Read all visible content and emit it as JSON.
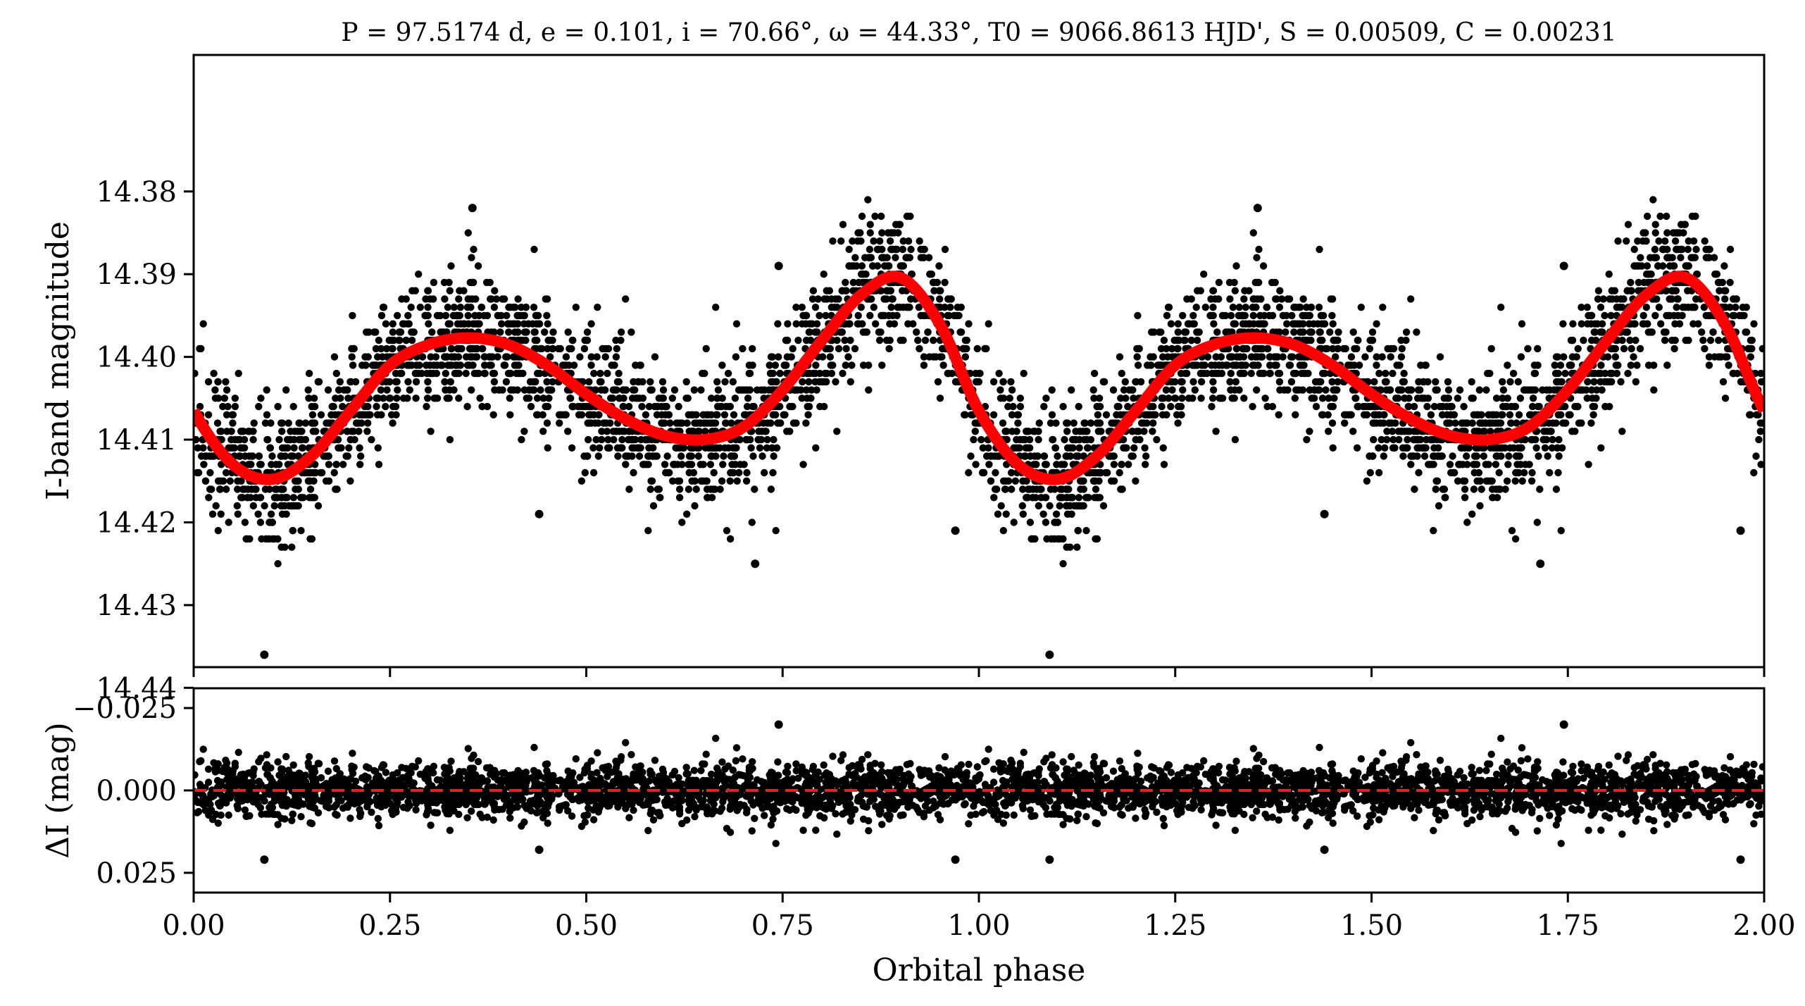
{
  "chart_data": [
    {
      "panel": "light-curve",
      "type": "scatter",
      "title": "P = 97.5174 d, e = 0.101, i = 70.66°, ω = 44.33°, T0 = 9066.8613 HJD', S = 0.00509, C = 0.00231",
      "xlabel": "",
      "ylabel": "I-band magnitude",
      "xlim": [
        0.0,
        2.0
      ],
      "ylim": [
        14.4375,
        14.3635
      ],
      "y_inverted": true,
      "yticks": [
        14.38,
        14.39,
        14.4,
        14.41,
        14.42,
        14.43,
        14.44
      ],
      "ytick_labels": [
        "14.38",
        "14.39",
        "14.40",
        "14.41",
        "14.42",
        "14.43",
        "14.44"
      ],
      "xticks": [
        0.0,
        0.25,
        0.5,
        0.75,
        1.0,
        1.25,
        1.5,
        1.75,
        2.0
      ],
      "grid": false,
      "model_curve": {
        "color": "#ff0000",
        "phase": [
          0.0,
          0.05,
          0.1,
          0.15,
          0.2,
          0.25,
          0.3,
          0.35,
          0.4,
          0.45,
          0.5,
          0.55,
          0.6,
          0.65,
          0.7,
          0.75,
          0.8,
          0.85,
          0.9,
          0.95,
          1.0,
          1.05,
          1.1,
          1.15,
          1.2,
          1.25,
          1.3,
          1.35,
          1.4,
          1.45,
          1.5,
          1.55,
          1.6,
          1.65,
          1.7,
          1.75,
          1.8,
          1.85,
          1.9,
          1.95,
          2.0
        ],
        "magnitude": [
          14.4065,
          14.413,
          14.4148,
          14.412,
          14.4065,
          14.401,
          14.3985,
          14.3977,
          14.3985,
          14.401,
          14.4045,
          14.4075,
          14.4095,
          14.41,
          14.4085,
          14.404,
          14.398,
          14.3925,
          14.3904,
          14.396,
          14.4065,
          14.413,
          14.4148,
          14.412,
          14.4065,
          14.401,
          14.3985,
          14.3977,
          14.3985,
          14.401,
          14.4045,
          14.4075,
          14.4095,
          14.41,
          14.4085,
          14.404,
          14.398,
          14.3925,
          14.3904,
          14.396,
          14.4065
        ]
      },
      "points_style": {
        "color": "#000000",
        "count": 4200,
        "scatter_mag": 0.0042
      },
      "outliers": [
        {
          "phase": 0.09,
          "magnitude": 14.436
        },
        {
          "phase": 1.09,
          "magnitude": 14.436
        },
        {
          "phase": 0.355,
          "magnitude": 14.382
        },
        {
          "phase": 1.355,
          "magnitude": 14.382
        },
        {
          "phase": 0.745,
          "magnitude": 14.389
        },
        {
          "phase": 1.745,
          "magnitude": 14.389
        },
        {
          "phase": 0.97,
          "magnitude": 14.421
        },
        {
          "phase": 1.97,
          "magnitude": 14.421
        },
        {
          "phase": 0.715,
          "magnitude": 14.425
        },
        {
          "phase": 1.715,
          "magnitude": 14.425
        },
        {
          "phase": 0.44,
          "magnitude": 14.419
        },
        {
          "phase": 1.44,
          "magnitude": 14.419
        }
      ]
    },
    {
      "panel": "residuals",
      "type": "scatter",
      "xlabel": "Orbital phase",
      "ylabel": "ΔI (mag)",
      "xlim": [
        0.0,
        2.0
      ],
      "ylim": [
        0.031,
        -0.031
      ],
      "y_inverted": true,
      "yticks": [
        -0.025,
        0.0,
        0.025
      ],
      "ytick_labels": [
        "−0.025",
        "0.000",
        "0.025"
      ],
      "xticks": [
        0.0,
        0.25,
        0.5,
        0.75,
        1.0,
        1.25,
        1.5,
        1.75,
        2.0
      ],
      "xtick_labels": [
        "0.00",
        "0.25",
        "0.50",
        "0.75",
        "1.00",
        "1.25",
        "1.50",
        "1.75",
        "2.00"
      ],
      "grid": false,
      "zero_line": {
        "value": 0.0,
        "color": "#d62728",
        "style": "dashed"
      },
      "points_style": {
        "color": "#000000",
        "count": 4200,
        "scatter_mag": 0.0042
      },
      "outliers": [
        {
          "phase": 0.09,
          "residual": 0.021
        },
        {
          "phase": 1.09,
          "residual": 0.021
        },
        {
          "phase": 0.97,
          "residual": 0.021
        },
        {
          "phase": 1.97,
          "residual": 0.021
        },
        {
          "phase": 0.745,
          "residual": -0.02
        },
        {
          "phase": 1.745,
          "residual": -0.02
        },
        {
          "phase": 0.44,
          "residual": 0.018
        },
        {
          "phase": 1.44,
          "residual": 0.018
        }
      ]
    }
  ],
  "colors": {
    "points": "#000000",
    "model": "#ff0000",
    "zero_line": "#d62728"
  }
}
